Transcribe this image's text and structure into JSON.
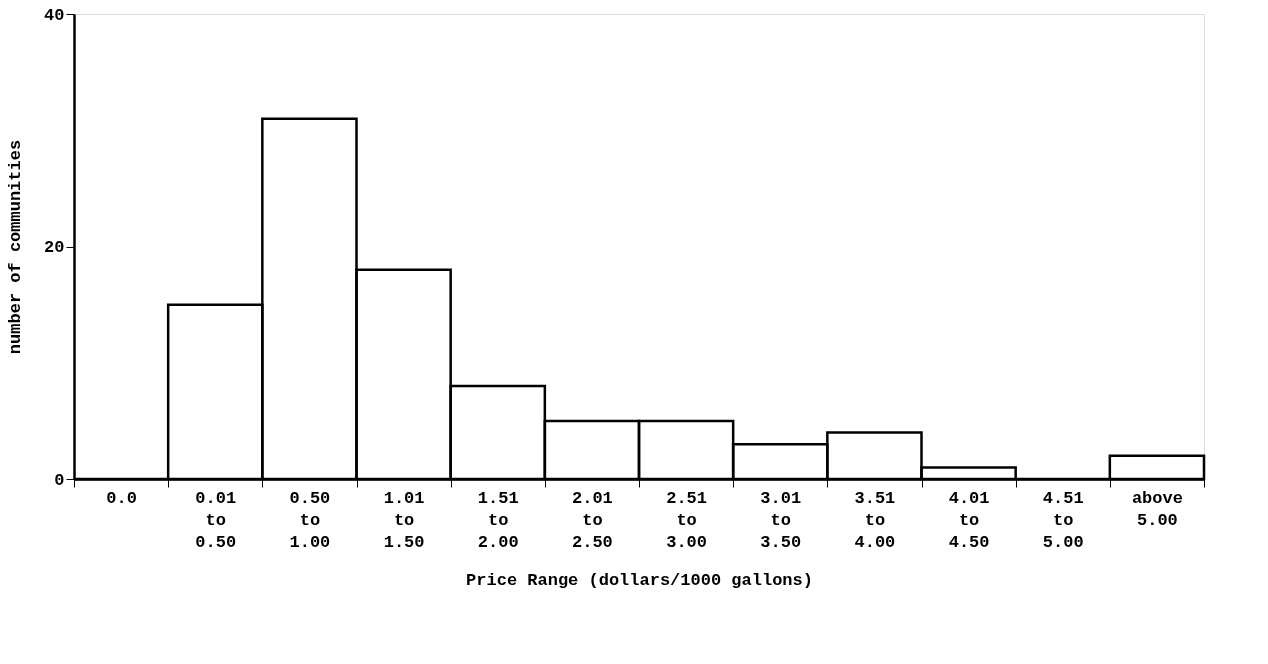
{
  "chart_data": {
    "type": "bar",
    "xlabel": "Price Range (dollars/1000 gallons)",
    "ylabel": "number of communities",
    "categories": [
      "0.0",
      "0.01 to 0.50",
      "0.50 to 1.00",
      "1.01 to 1.50",
      "1.51 to 2.00",
      "2.01 to 2.50",
      "2.51 to 3.00",
      "3.01 to 3.50",
      "3.51 to 4.00",
      "4.01 to 4.50",
      "4.51 to 5.00",
      "above 5.00"
    ],
    "values": [
      0,
      15,
      31,
      18,
      8,
      5,
      5,
      3,
      4,
      1,
      0,
      2
    ],
    "color": "#000000",
    "ylim": [
      0,
      40
    ],
    "yticks": [
      0,
      20,
      40
    ],
    "grid": false
  }
}
